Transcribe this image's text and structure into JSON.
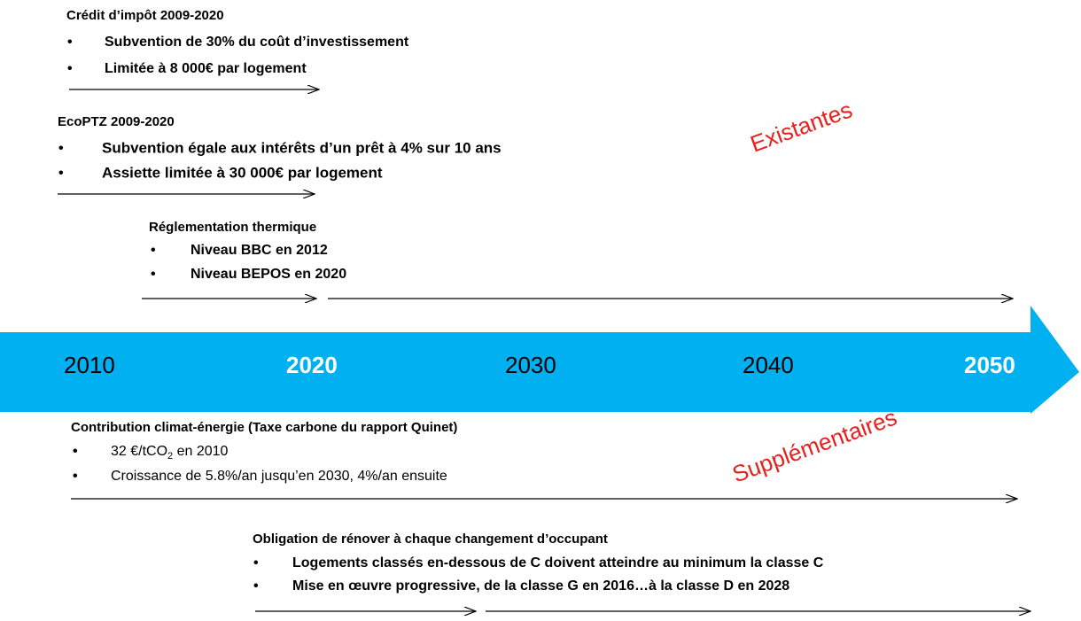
{
  "policies": [
    {
      "title": "Crédit d’impôt  2009-2020",
      "bullets": [
        "Subvention de 30% du coût d’investissement",
        "Limitée à 8 000€ par logement"
      ]
    },
    {
      "title": "EcoPTZ 2009-2020",
      "bullets": [
        "Subvention égale aux intérêts d’un prêt à 4% sur 10 ans",
        "Assiette limitée à 30 000€ par logement"
      ]
    },
    {
      "title": "Réglementation thermique",
      "bullets": [
        "Niveau BBC en 2012",
        "Niveau BEPOS en 2020"
      ]
    },
    {
      "title": "Contribution climat-énergie (Taxe carbone du rapport Quinet)",
      "bullets": [
        [
          "32 €/tCO",
          "2",
          " en 2010"
        ],
        "Croissance de 5.8%/an jusqu’en 2030, 4%/an ensuite"
      ]
    },
    {
      "title": "Obligation de rénover à chaque changement d’occupant",
      "bullets": [
        "Logements classés en-dessous de C doivent atteindre au minimum la classe C",
        "Mise en œuvre progressive, de la classe G en 2016…à la classe D en 2028"
      ]
    }
  ],
  "timeline": {
    "years": [
      "2010",
      "2020",
      "2030",
      "2040",
      "2050"
    ]
  },
  "groups": {
    "existing": "Existantes",
    "additional": "Supplémentaires"
  }
}
